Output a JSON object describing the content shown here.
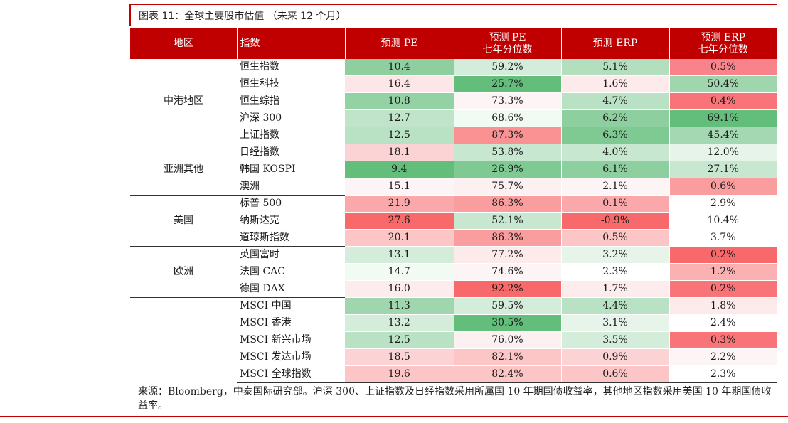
{
  "title": "图表 11：全球主要股市估值 （未来 12 个月）",
  "columns": {
    "region": "地区",
    "index": "指数",
    "pe": "预测 PE",
    "pe_pct_l1": "预测 PE",
    "pe_pct_l2": "七年分位数",
    "erp": "预测 ERP",
    "erp_pct_l1": "预测 ERP",
    "erp_pct_l2": "七年分位数"
  },
  "colors": {
    "header_bg": "#c00000",
    "green_strong": "#63be7b",
    "green_mid": "#9fd6ad",
    "green_light": "#c8e7d0",
    "green_pale": "#e6f4e9",
    "red_strong": "#f8696b",
    "red_mid": "#fa9d9e",
    "red_light": "#fcc5c6",
    "red_pale": "#fde6e7",
    "neutral": "#ffffff"
  },
  "groups": [
    {
      "region": "中港地区",
      "rows": [
        {
          "index": "恒生指数",
          "pe": "10.4",
          "pe_pct": "59.2%",
          "erp": "5.1%",
          "erp_pct": "0.5%",
          "c": [
            "#8dcf9e",
            "#d4ecda",
            "#b3dfbe",
            "#f9838a"
          ]
        },
        {
          "index": "恒生科技",
          "pe": "16.4",
          "pe_pct": "25.7%",
          "erp": "1.6%",
          "erp_pct": "50.4%",
          "c": [
            "#fde6e7",
            "#63be7b",
            "#fdebec",
            "#9fd6ad"
          ]
        },
        {
          "index": "恒生综指",
          "pe": "10.8",
          "pe_pct": "73.3%",
          "erp": "4.7%",
          "erp_pct": "0.4%",
          "c": [
            "#94d2a4",
            "#fdf4f5",
            "#b9e1c4",
            "#f87478"
          ]
        },
        {
          "index": "沪深 300",
          "pe": "12.7",
          "pe_pct": "68.6%",
          "erp": "6.2%",
          "erp_pct": "69.1%",
          "c": [
            "#bfe4c9",
            "#f2faf4",
            "#8dcf9e",
            "#63be7b"
          ]
        },
        {
          "index": "上证指数",
          "pe": "12.5",
          "pe_pct": "87.3%",
          "erp": "6.3%",
          "erp_pct": "45.4%",
          "c": [
            "#b9e1c4",
            "#fa9294",
            "#7fc992",
            "#a4d8b2"
          ]
        }
      ]
    },
    {
      "region": "亚洲其他",
      "rows": [
        {
          "index": "日经指数",
          "pe": "18.1",
          "pe_pct": "53.8%",
          "erp": "4.0%",
          "erp_pct": "12.0%",
          "c": [
            "#fcd3d5",
            "#c8e7d0",
            "#c8e7d0",
            "#e6f4e9"
          ]
        },
        {
          "index": "韩国 KOSPI",
          "pe": "9.4",
          "pe_pct": "26.9%",
          "erp": "6.1%",
          "erp_pct": "27.1%",
          "c": [
            "#63be7b",
            "#7fc992",
            "#8dcf9e",
            "#c8e7d0"
          ]
        },
        {
          "index": "澳洲",
          "pe": "15.1",
          "pe_pct": "75.7%",
          "erp": "2.1%",
          "erp_pct": "0.6%",
          "c": [
            "#fdf4f5",
            "#fdf0f1",
            "#fdf4f5",
            "#fa9d9e"
          ]
        }
      ]
    },
    {
      "region": "美国",
      "rows": [
        {
          "index": "标普 500",
          "pe": "21.9",
          "pe_pct": "86.3%",
          "erp": "0.1%",
          "erp_pct": "2.9%",
          "c": [
            "#fba8aa",
            "#fa9d9e",
            "#fba8aa",
            "#ffffff"
          ]
        },
        {
          "index": "纳斯达克",
          "pe": "27.6",
          "pe_pct": "52.1%",
          "erp": "-0.9%",
          "erp_pct": "10.4%",
          "c": [
            "#f8696b",
            "#c8e7d0",
            "#f8696b",
            "#ffffff"
          ]
        },
        {
          "index": "道琼斯指数",
          "pe": "20.1",
          "pe_pct": "86.3%",
          "erp": "0.5%",
          "erp_pct": "3.7%",
          "c": [
            "#fcc5c6",
            "#fa9d9e",
            "#fcc5c6",
            "#ffffff"
          ]
        }
      ]
    },
    {
      "region": "欧洲",
      "rows": [
        {
          "index": "英国富时",
          "pe": "13.1",
          "pe_pct": "77.2%",
          "erp": "3.2%",
          "erp_pct": "0.2%",
          "c": [
            "#d4ecda",
            "#fdebec",
            "#e6f4e9",
            "#f8696b"
          ]
        },
        {
          "index": "法国 CAC",
          "pe": "14.7",
          "pe_pct": "74.6%",
          "erp": "2.3%",
          "erp_pct": "1.2%",
          "c": [
            "#f2faf4",
            "#fdf4f5",
            "#ffffff",
            "#fbb0b2"
          ]
        },
        {
          "index": "德国 DAX",
          "pe": "16.0",
          "pe_pct": "92.2%",
          "erp": "1.7%",
          "erp_pct": "0.2%",
          "c": [
            "#fdeced",
            "#f8696b",
            "#fdeced",
            "#f87478"
          ]
        }
      ]
    },
    {
      "region": "",
      "rows": [
        {
          "index": "MSCI 中国",
          "pe": "11.3",
          "pe_pct": "59.5%",
          "erp": "4.4%",
          "erp_pct": "1.8%",
          "c": [
            "#9fd6ad",
            "#d4ecda",
            "#b9e1c4",
            "#fdebec"
          ]
        },
        {
          "index": "MSCI 香港",
          "pe": "13.2",
          "pe_pct": "30.5%",
          "erp": "3.1%",
          "erp_pct": "2.4%",
          "c": [
            "#d4ecda",
            "#63be7b",
            "#e6f4e9",
            "#ffffff"
          ]
        },
        {
          "index": "MSCI 新兴市场",
          "pe": "12.5",
          "pe_pct": "76.0%",
          "erp": "3.5%",
          "erp_pct": "0.3%",
          "c": [
            "#b9e1c4",
            "#fdf0f1",
            "#d4ecda",
            "#f87478"
          ]
        },
        {
          "index": "MSCI 发达市场",
          "pe": "18.5",
          "pe_pct": "82.1%",
          "erp": "0.9%",
          "erp_pct": "2.2%",
          "c": [
            "#fcd3d5",
            "#fcc5c6",
            "#fcd3d5",
            "#fdf4f5"
          ]
        },
        {
          "index": "MSCI 全球指数",
          "pe": "19.6",
          "pe_pct": "82.4%",
          "erp": "0.6%",
          "erp_pct": "2.3%",
          "c": [
            "#fcc5c6",
            "#fcc5c6",
            "#fcc5c6",
            "#ffffff"
          ]
        }
      ]
    }
  ],
  "source": "来源：Bloomberg，中泰国际研究部。沪深 300、上证指数及日经指数采用所属国 10 年期国债收益率，其他地区指数采用美国 10 年期国债收益率。"
}
